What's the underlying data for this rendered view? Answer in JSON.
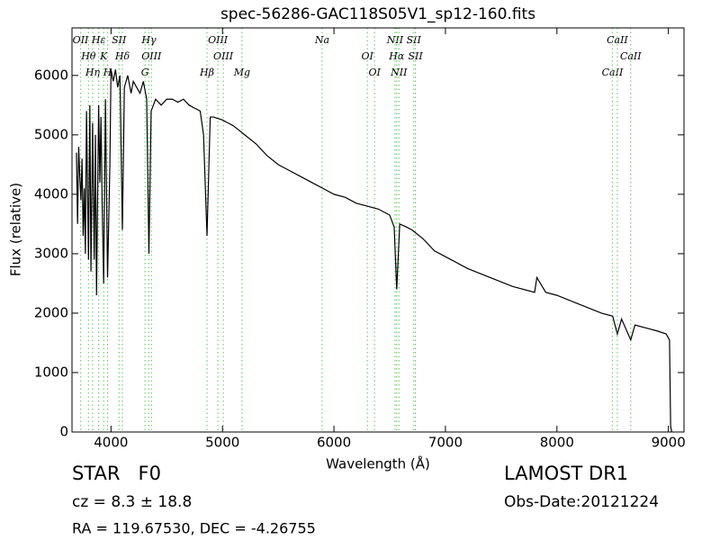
{
  "chart_data": {
    "type": "line",
    "title": "spec-56286-GAC118S05V1_sp12-160.fits",
    "x_label": "Wavelength (Å)",
    "y_label": "Flux (relative)",
    "xlim": [
      3650,
      9140
    ],
    "ylim": [
      0,
      6800
    ],
    "xticks": [
      4000,
      5000,
      6000,
      7000,
      8000,
      9000
    ],
    "yticks": [
      0,
      1000,
      2000,
      3000,
      4000,
      5000,
      6000
    ],
    "grid": false,
    "x": [
      3690,
      3700,
      3710,
      3720,
      3730,
      3740,
      3750,
      3760,
      3770,
      3780,
      3798,
      3810,
      3820,
      3835,
      3850,
      3860,
      3870,
      3889,
      3900,
      3910,
      3920,
      3934,
      3950,
      3969,
      3990,
      4000,
      4020,
      4040,
      4060,
      4080,
      4102,
      4120,
      4150,
      4180,
      4200,
      4230,
      4260,
      4290,
      4320,
      4340,
      4360,
      4400,
      4450,
      4500,
      4550,
      4600,
      4650,
      4700,
      4750,
      4800,
      4830,
      4861,
      4890,
      4920,
      5000,
      5100,
      5200,
      5300,
      5400,
      5500,
      5600,
      5700,
      5800,
      5900,
      6000,
      6100,
      6200,
      6300,
      6400,
      6500,
      6540,
      6563,
      6590,
      6650,
      6700,
      6800,
      6900,
      7000,
      7200,
      7400,
      7600,
      7800,
      7820,
      7900,
      8000,
      8200,
      8400,
      8500,
      8542,
      8580,
      8662,
      8700,
      8800,
      8900,
      8980,
      9010,
      9020,
      9030
    ],
    "series": [
      {
        "color": "#000000",
        "values": [
          4700,
          3500,
          4800,
          4300,
          3900,
          4600,
          3300,
          4100,
          3000,
          5400,
          2900,
          5500,
          2700,
          5200,
          2900,
          5000,
          2300,
          5500,
          4200,
          5300,
          3900,
          2500,
          5600,
          2600,
          4500,
          6100,
          5900,
          6100,
          5800,
          6000,
          3400,
          5800,
          6000,
          5700,
          5900,
          5800,
          5700,
          5900,
          5600,
          3000,
          5400,
          5600,
          5500,
          5600,
          5600,
          5550,
          5600,
          5500,
          5450,
          5400,
          5000,
          3300,
          5300,
          5300,
          5250,
          5150,
          5000,
          4850,
          4650,
          4500,
          4400,
          4300,
          4200,
          4100,
          4000,
          3950,
          3850,
          3800,
          3750,
          3650,
          3450,
          2400,
          3500,
          3450,
          3400,
          3250,
          3050,
          2950,
          2750,
          2600,
          2450,
          2350,
          2600,
          2350,
          2300,
          2150,
          2000,
          1950,
          1650,
          1900,
          1550,
          1800,
          1750,
          1700,
          1650,
          1550,
          100,
          0
        ]
      }
    ],
    "line_color": "#77cc77",
    "spectral_lines": [
      {
        "label": "OII",
        "x": 3727
      },
      {
        "label": "Hθ",
        "x": 3798
      },
      {
        "label": "Hη",
        "x": 3835
      },
      {
        "label": "Hε",
        "x": 3889
      },
      {
        "label": "K",
        "x": 3934
      },
      {
        "label": "H",
        "x": 3969
      },
      {
        "label": "SII",
        "x": 4072
      },
      {
        "label": "Hδ",
        "x": 4102
      },
      {
        "label": "G",
        "x": 4305
      },
      {
        "label": "Hγ",
        "x": 4340
      },
      {
        "label": "OIII",
        "x": 4363
      },
      {
        "label": "Hβ",
        "x": 4861
      },
      {
        "label": "OIII",
        "x": 4959
      },
      {
        "label": "OIII",
        "x": 5007
      },
      {
        "label": "Mg",
        "x": 5175
      },
      {
        "label": "Na",
        "x": 5894
      },
      {
        "label": "OI",
        "x": 6300
      },
      {
        "label": "OI",
        "x": 6364
      },
      {
        "label": "NII",
        "x": 6548
      },
      {
        "label": "Hα",
        "x": 6563
      },
      {
        "label": "NII",
        "x": 6583
      },
      {
        "label": "SII",
        "x": 6716
      },
      {
        "label": "SII",
        "x": 6731
      },
      {
        "label": "CaII",
        "x": 8498
      },
      {
        "label": "CaII",
        "x": 8542
      },
      {
        "label": "CaII",
        "x": 8662
      }
    ]
  },
  "info": {
    "object_class": "STAR   F0",
    "redshift": "cz = 8.3 ± 18.8",
    "coords": "RA = 119.67530, DEC = -4.26755",
    "survey": "LAMOST DR1",
    "obs_date": "Obs-Date:20121224"
  }
}
